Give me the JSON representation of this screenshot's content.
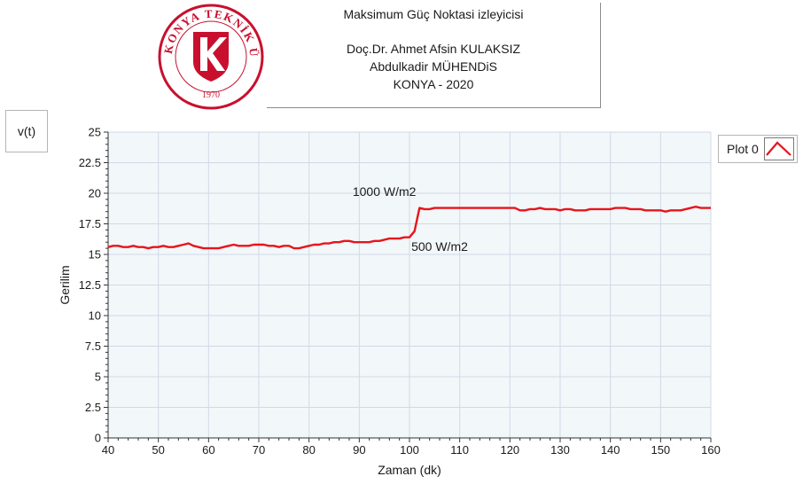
{
  "header": {
    "line1": "Maksimum Güç Noktasi izleyicisi",
    "line2": "Doç.Dr. Ahmet Afsin KULAKSIZ",
    "line3": "Abdulkadir MÜHENDiS",
    "line4": "KONYA - 2020"
  },
  "logo": {
    "ring_text": "KONYA TEKNİK ÜNİVERSİTESİ",
    "year": "1970",
    "color": "#c8102e"
  },
  "indicator_label": "v(t)",
  "legend": {
    "label": "Plot 0"
  },
  "colors": {
    "line": "#e8141c",
    "plot_bg": "#f2f7f9",
    "grid": "#d3d8e8"
  },
  "chart_data": {
    "type": "line",
    "xlabel": "Zaman (dk)",
    "ylabel": "Gerilim",
    "xlim": [
      40,
      160
    ],
    "ylim": [
      0,
      25
    ],
    "x_ticks": [
      "40",
      "50",
      "60",
      "70",
      "80",
      "90",
      "100",
      "110",
      "120",
      "130",
      "140",
      "150",
      "160"
    ],
    "y_ticks": [
      "0",
      "2.5",
      "5",
      "7.5",
      "10",
      "12.5",
      "15",
      "17.5",
      "20",
      "22.5",
      "25"
    ],
    "grid": true,
    "legend_position": "top-right",
    "annotations": [
      {
        "text": "1000 W/m2",
        "x": 95,
        "y": 19.8
      },
      {
        "text": "500 W/m2",
        "x": 106,
        "y": 15.3
      }
    ],
    "series": [
      {
        "name": "Plot 0",
        "x": [
          40,
          41,
          42,
          43,
          44,
          45,
          46,
          47,
          48,
          49,
          50,
          51,
          52,
          53,
          54,
          55,
          56,
          57,
          58,
          59,
          60,
          61,
          62,
          63,
          64,
          65,
          66,
          67,
          68,
          69,
          70,
          71,
          72,
          73,
          74,
          75,
          76,
          77,
          78,
          79,
          80,
          81,
          82,
          83,
          84,
          85,
          86,
          87,
          88,
          89,
          90,
          91,
          92,
          93,
          94,
          95,
          96,
          97,
          98,
          99,
          100,
          101,
          102,
          103,
          104,
          105,
          106,
          107,
          108,
          109,
          110,
          111,
          112,
          113,
          114,
          115,
          116,
          117,
          118,
          119,
          120,
          121,
          122,
          123,
          124,
          125,
          126,
          127,
          128,
          129,
          130,
          131,
          132,
          133,
          134,
          135,
          136,
          137,
          138,
          139,
          140,
          141,
          142,
          143,
          144,
          145,
          146,
          147,
          148,
          149,
          150,
          151,
          152,
          153,
          154,
          155,
          156,
          157,
          158,
          159,
          160
        ],
        "y": [
          15.6,
          15.7,
          15.7,
          15.6,
          15.6,
          15.7,
          15.6,
          15.6,
          15.5,
          15.6,
          15.6,
          15.7,
          15.6,
          15.6,
          15.7,
          15.8,
          15.9,
          15.7,
          15.6,
          15.5,
          15.5,
          15.5,
          15.5,
          15.6,
          15.7,
          15.8,
          15.7,
          15.7,
          15.7,
          15.8,
          15.8,
          15.8,
          15.7,
          15.7,
          15.6,
          15.7,
          15.7,
          15.5,
          15.5,
          15.6,
          15.7,
          15.8,
          15.8,
          15.9,
          15.9,
          16.0,
          16.0,
          16.1,
          16.1,
          16.0,
          16.0,
          16.0,
          16.0,
          16.1,
          16.1,
          16.2,
          16.3,
          16.3,
          16.3,
          16.4,
          16.4,
          16.9,
          18.8,
          18.7,
          18.7,
          18.8,
          18.8,
          18.8,
          18.8,
          18.8,
          18.8,
          18.8,
          18.8,
          18.8,
          18.8,
          18.8,
          18.8,
          18.8,
          18.8,
          18.8,
          18.8,
          18.8,
          18.6,
          18.6,
          18.7,
          18.7,
          18.8,
          18.7,
          18.7,
          18.7,
          18.6,
          18.7,
          18.7,
          18.6,
          18.6,
          18.6,
          18.7,
          18.7,
          18.7,
          18.7,
          18.7,
          18.8,
          18.8,
          18.8,
          18.7,
          18.7,
          18.7,
          18.6,
          18.6,
          18.6,
          18.6,
          18.5,
          18.6,
          18.6,
          18.6,
          18.7,
          18.8,
          18.9,
          18.8,
          18.8,
          18.8
        ]
      }
    ]
  }
}
